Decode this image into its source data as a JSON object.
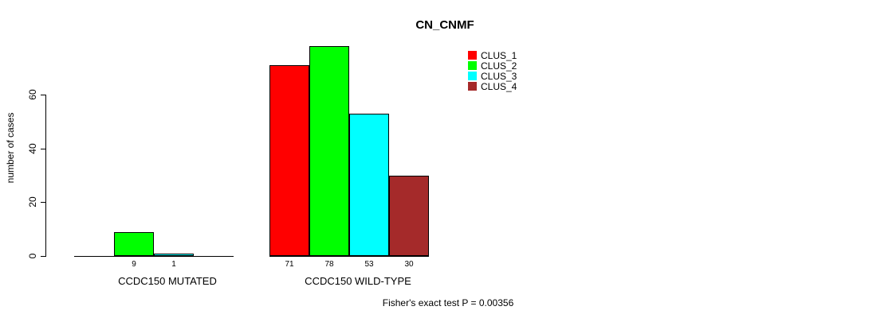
{
  "chart_data": {
    "type": "bar",
    "title": "CN_CNMF",
    "ylabel": "number of cases",
    "xlabel": "",
    "categories": [
      "CCDC150 MUTATED",
      "CCDC150 WILD-TYPE"
    ],
    "series": [
      {
        "name": "CLUS_1",
        "color": "#FF0000",
        "values": [
          0,
          71
        ]
      },
      {
        "name": "CLUS_2",
        "color": "#00FF00",
        "values": [
          9,
          78
        ]
      },
      {
        "name": "CLUS_3",
        "color": "#00FFFF",
        "values": [
          1,
          53
        ]
      },
      {
        "name": "CLUS_4",
        "color": "#A52A2A",
        "values": [
          0,
          30
        ]
      }
    ],
    "bar_labels": [
      [
        "",
        "9",
        "1",
        ""
      ],
      [
        "71",
        "78",
        "53",
        "30"
      ]
    ],
    "yticks": [
      0,
      20,
      40,
      60
    ],
    "ylim": [
      0,
      78
    ],
    "grid": false,
    "legend_position": "top-right",
    "annotation": "Fisher's exact test P = 0.00356",
    "axis_color": "#000000",
    "background_color": "#FFFFFF"
  }
}
